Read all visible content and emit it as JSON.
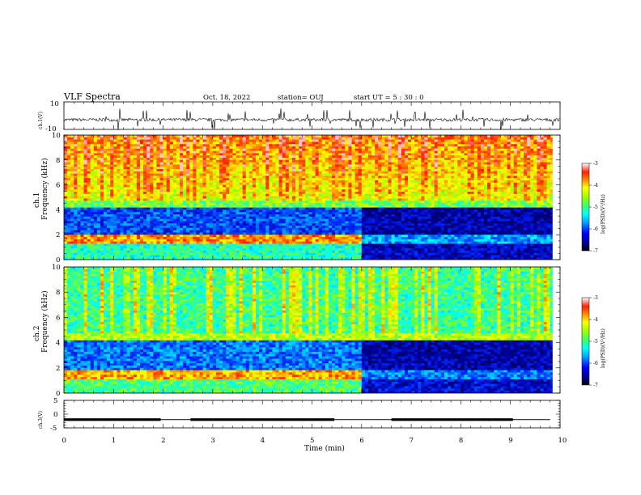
{
  "header": {
    "title": "VLF Spectra",
    "date": "Oct. 18, 2022",
    "station": "station= OUJ",
    "start": "start  UT =   5 : 30 : 0"
  },
  "colors": {
    "colormap": [
      "#000080",
      "#0000ff",
      "#00a0ff",
      "#00ffff",
      "#40ff80",
      "#a0ff00",
      "#ffff00",
      "#ffa000",
      "#ff2000",
      "#ffffff"
    ]
  },
  "chart_data": [
    {
      "type": "line",
      "name": "ch1-waveform",
      "ylabel": "ch.1(V)",
      "ylim": [
        -10,
        10
      ],
      "yticks": [
        "10",
        "-10"
      ],
      "xlim": [
        0,
        10
      ],
      "baseline": -3
    },
    {
      "type": "heatmap",
      "name": "ch1-spectrogram",
      "ylabel_top": "ch.1",
      "ylabel": "Frequency (kHz)",
      "ylim": [
        0,
        10
      ],
      "yticks": [
        "0",
        "2",
        "4",
        "6",
        "8",
        "10"
      ],
      "xlim": [
        0,
        10
      ],
      "change_time_min": 6,
      "colorbar": {
        "label": "log(PSD)(V²/Hz)",
        "ticks": [
          "-3",
          "-4",
          "-5",
          "-6",
          "-7"
        ],
        "range": [
          -7,
          -3
        ]
      }
    },
    {
      "type": "heatmap",
      "name": "ch2-spectrogram",
      "ylabel_top": "ch.2",
      "ylabel": "Frequency (kHz)",
      "ylim": [
        0,
        10
      ],
      "yticks": [
        "0",
        "2",
        "4",
        "6",
        "8",
        "10"
      ],
      "xlim": [
        0,
        10
      ],
      "change_time_min": 6,
      "colorbar": {
        "label": "log(PSD)(V²/Hz)",
        "ticks": [
          "-3",
          "-4",
          "-5",
          "-6",
          "-7"
        ],
        "range": [
          -7,
          -3
        ]
      }
    },
    {
      "type": "line",
      "name": "ch3-waveform",
      "ylabel": "ch.3(V)",
      "ylim": [
        -5,
        5
      ],
      "yticks": [
        "5",
        "0",
        "-5"
      ],
      "xlim": [
        0,
        10
      ],
      "level": -2,
      "segments": [
        [
          0,
          1.95
        ],
        [
          2.55,
          5.45
        ],
        [
          6.6,
          9.05
        ]
      ]
    }
  ],
  "xaxis": {
    "label": "Time (min)",
    "ticks": [
      "0",
      "1",
      "2",
      "3",
      "4",
      "5",
      "6",
      "7",
      "8",
      "9",
      "10"
    ],
    "range": [
      0,
      10
    ]
  }
}
